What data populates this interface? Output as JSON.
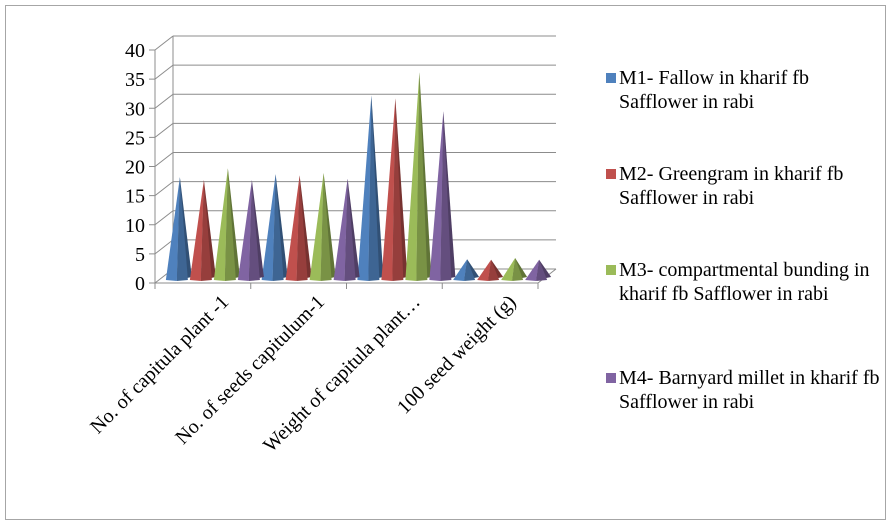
{
  "chart_data": {
    "type": "bar",
    "title": "",
    "xlabel": "",
    "ylabel": "",
    "ylim": [
      0,
      40
    ],
    "yticks": [
      0,
      5,
      10,
      15,
      20,
      25,
      30,
      35,
      40
    ],
    "grid": true,
    "legend_position": "right",
    "categories": [
      "No. of capitula plant -1",
      "No. of seeds capitulum-1",
      "Weight of capitula plant…",
      "100 seed weight (g)"
    ],
    "series": [
      {
        "name": "M1- Fallow in kharif fb Safflower in rabi",
        "color": "#4f81bd",
        "values": [
          17.5,
          18.0,
          31.5,
          3.4
        ]
      },
      {
        "name": "M2- Greengram in kharif fb Safflower in rabi",
        "color": "#c0504d",
        "values": [
          17.0,
          17.8,
          31.0,
          3.3
        ]
      },
      {
        "name": "M3- compartmental bunding in kharif fb Safflower in rabi",
        "color": "#9bbb59",
        "values": [
          19.0,
          18.2,
          35.5,
          3.6
        ]
      },
      {
        "name": "M4- Barnyard millet in kharif fb Safflower in rabi",
        "color": "#8064a2",
        "values": [
          17.0,
          17.2,
          28.8,
          3.3
        ]
      }
    ]
  }
}
